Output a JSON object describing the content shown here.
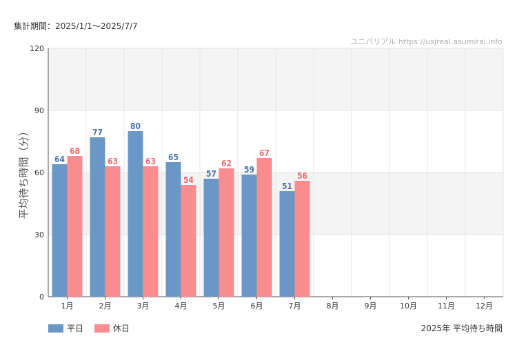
{
  "header": {
    "period_label": "集計期間：2025/1/1〜2025/7/7"
  },
  "watermark": "ユニバリアル  https://usjreal.asumirai.info",
  "footer": {
    "caption": "2025年 平均待ち時間"
  },
  "colors": {
    "weekday": "#6a98c6",
    "holiday": "#fb8c90",
    "weekday_label": "#4a78a8",
    "holiday_label": "#f06a70"
  },
  "chart_data": {
    "type": "bar",
    "title": "",
    "xlabel": "",
    "ylabel": "平均待ち時間（分）",
    "ylim": [
      0,
      120
    ],
    "yticks": [
      0,
      30,
      60,
      90,
      120
    ],
    "grid": true,
    "legend_placement": "bottom-left",
    "categories": [
      "1月",
      "2月",
      "3月",
      "4月",
      "5月",
      "6月",
      "7月",
      "8月",
      "9月",
      "10月",
      "11月",
      "12月"
    ],
    "series": [
      {
        "name": "平日",
        "values": [
          64,
          77,
          80,
          65,
          57,
          59,
          51,
          null,
          null,
          null,
          null,
          null
        ]
      },
      {
        "name": "休日",
        "values": [
          68,
          63,
          63,
          54,
          62,
          67,
          56,
          null,
          null,
          null,
          null,
          null
        ]
      }
    ]
  }
}
